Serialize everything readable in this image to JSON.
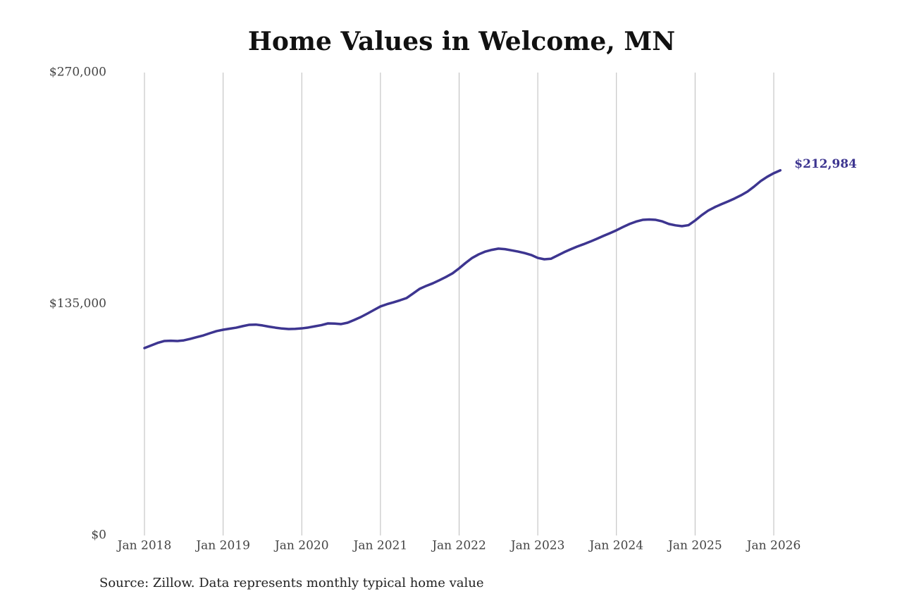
{
  "chart_data": {
    "type": "line",
    "title": "Home Values in Welcome, MN",
    "source": "Source: Zillow. Data represents monthly typical home value",
    "x": [
      "2018-01",
      "2018-02",
      "2018-03",
      "2018-04",
      "2018-05",
      "2018-06",
      "2018-07",
      "2018-08",
      "2018-09",
      "2018-10",
      "2018-11",
      "2018-12",
      "2019-01",
      "2019-02",
      "2019-03",
      "2019-04",
      "2019-05",
      "2019-06",
      "2019-07",
      "2019-08",
      "2019-09",
      "2019-10",
      "2019-11",
      "2019-12",
      "2020-01",
      "2020-02",
      "2020-03",
      "2020-04",
      "2020-05",
      "2020-06",
      "2020-07",
      "2020-08",
      "2020-09",
      "2020-10",
      "2020-11",
      "2020-12",
      "2021-01",
      "2021-02",
      "2021-03",
      "2021-04",
      "2021-05",
      "2021-06",
      "2021-07",
      "2021-08",
      "2021-09",
      "2021-10",
      "2021-11",
      "2021-12",
      "2022-01",
      "2022-02",
      "2022-03",
      "2022-04",
      "2022-05",
      "2022-06",
      "2022-07",
      "2022-08",
      "2022-09",
      "2022-10",
      "2022-11",
      "2022-12",
      "2023-01",
      "2023-02",
      "2023-03",
      "2023-04",
      "2023-05",
      "2023-06",
      "2023-07",
      "2023-08",
      "2023-09",
      "2023-10",
      "2023-11",
      "2023-12",
      "2024-01",
      "2024-02",
      "2024-03",
      "2024-04",
      "2024-05",
      "2024-06",
      "2024-07",
      "2024-08",
      "2024-09",
      "2024-10",
      "2024-11",
      "2024-12",
      "2025-01",
      "2025-02",
      "2025-03",
      "2025-04",
      "2025-05",
      "2025-06",
      "2025-07",
      "2025-08",
      "2025-09",
      "2025-10",
      "2025-11",
      "2025-12",
      "2026-01",
      "2026-02"
    ],
    "series": [
      {
        "name": "Typical home value",
        "color": "#3d3590",
        "end_label": "$212,984",
        "values": [
          109300,
          110800,
          112300,
          113400,
          113600,
          113400,
          113800,
          114700,
          115700,
          116700,
          118000,
          119200,
          120000,
          120600,
          121200,
          122100,
          122900,
          123000,
          122500,
          121800,
          121200,
          120700,
          120400,
          120500,
          120800,
          121300,
          122000,
          122700,
          123700,
          123600,
          123300,
          124100,
          125700,
          127400,
          129400,
          131500,
          133600,
          134900,
          136000,
          137200,
          138500,
          141200,
          143900,
          145600,
          147100,
          148900,
          150800,
          152900,
          155800,
          159000,
          161900,
          164000,
          165600,
          166600,
          167300,
          167000,
          166300,
          165600,
          164700,
          163600,
          161900,
          161100,
          161400,
          163300,
          165200,
          166900,
          168500,
          169900,
          171400,
          173000,
          174700,
          176300,
          178000,
          179900,
          181700,
          183100,
          184100,
          184300,
          184100,
          183200,
          181700,
          180900,
          180400,
          181000,
          183700,
          186800,
          189500,
          191500,
          193200,
          194800,
          196500,
          198400,
          200600,
          203500,
          206700,
          209200,
          211300,
          212984
        ]
      }
    ],
    "xticks": [
      {
        "value": "2018-01",
        "label": "Jan 2018"
      },
      {
        "value": "2019-01",
        "label": "Jan 2019"
      },
      {
        "value": "2020-01",
        "label": "Jan 2020"
      },
      {
        "value": "2021-01",
        "label": "Jan 2021"
      },
      {
        "value": "2022-01",
        "label": "Jan 2022"
      },
      {
        "value": "2023-01",
        "label": "Jan 2023"
      },
      {
        "value": "2024-01",
        "label": "Jan 2024"
      },
      {
        "value": "2025-01",
        "label": "Jan 2025"
      },
      {
        "value": "2026-01",
        "label": "Jan 2026"
      }
    ],
    "ylim": [
      0,
      270000
    ],
    "yticks": [
      {
        "value": 0,
        "label": "$0"
      },
      {
        "value": 135000,
        "label": "$135,000"
      },
      {
        "value": 270000,
        "label": "$270,000"
      }
    ],
    "grid": "x"
  }
}
